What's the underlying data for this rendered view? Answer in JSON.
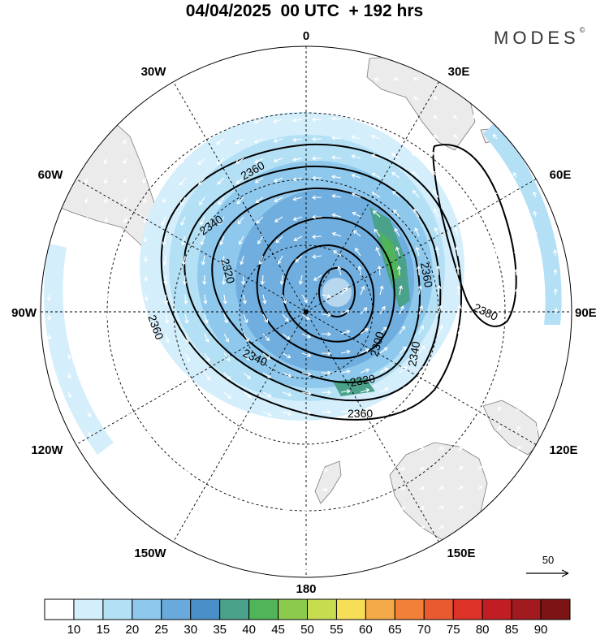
{
  "header": {
    "title": "04/04/2025  00 UTC  + 192 hrs",
    "brand": "MODES",
    "brand_mark": "©"
  },
  "longitude_labels": {
    "0": "0",
    "30E": "30E",
    "60E": "60E",
    "90E": "90E",
    "120E": "120E",
    "150E": "150E",
    "180": "180",
    "150W": "150W",
    "120W": "120W",
    "90W": "90W",
    "60W": "60W",
    "30W": "30W"
  },
  "contour_labels": [
    {
      "id": "c2360a",
      "text": "2360"
    },
    {
      "id": "c2340a",
      "text": "2340"
    },
    {
      "id": "c2320a",
      "text": "2320"
    },
    {
      "id": "c2360b",
      "text": "2360"
    },
    {
      "id": "c2340b",
      "text": "2340"
    },
    {
      "id": "c2320b",
      "text": "2320"
    },
    {
      "id": "c2360c",
      "text": "2360"
    },
    {
      "id": "c2300",
      "text": "2300"
    },
    {
      "id": "c2340c",
      "text": "2340"
    },
    {
      "id": "c2360d",
      "text": "2360"
    },
    {
      "id": "c2380",
      "text": "2380"
    }
  ],
  "wind_reference": {
    "label": "50"
  },
  "colorbar": {
    "labels": [
      "10",
      "15",
      "20",
      "25",
      "30",
      "35",
      "40",
      "45",
      "50",
      "55",
      "60",
      "65",
      "70",
      "75",
      "80",
      "85",
      "90"
    ],
    "colors": [
      "#ffffff",
      "#d4eefb",
      "#b4e0f5",
      "#8ec8ec",
      "#6aa9dc",
      "#4a8fc8",
      "#4aa28a",
      "#50b458",
      "#8cca4e",
      "#c8dc50",
      "#f6de58",
      "#f4aa48",
      "#f28038",
      "#ea5a30",
      "#dc3228",
      "#c01e24",
      "#a01a20",
      "#7c1414"
    ]
  },
  "colors": {
    "land": "#ebebeb",
    "grid": "#000000"
  }
}
